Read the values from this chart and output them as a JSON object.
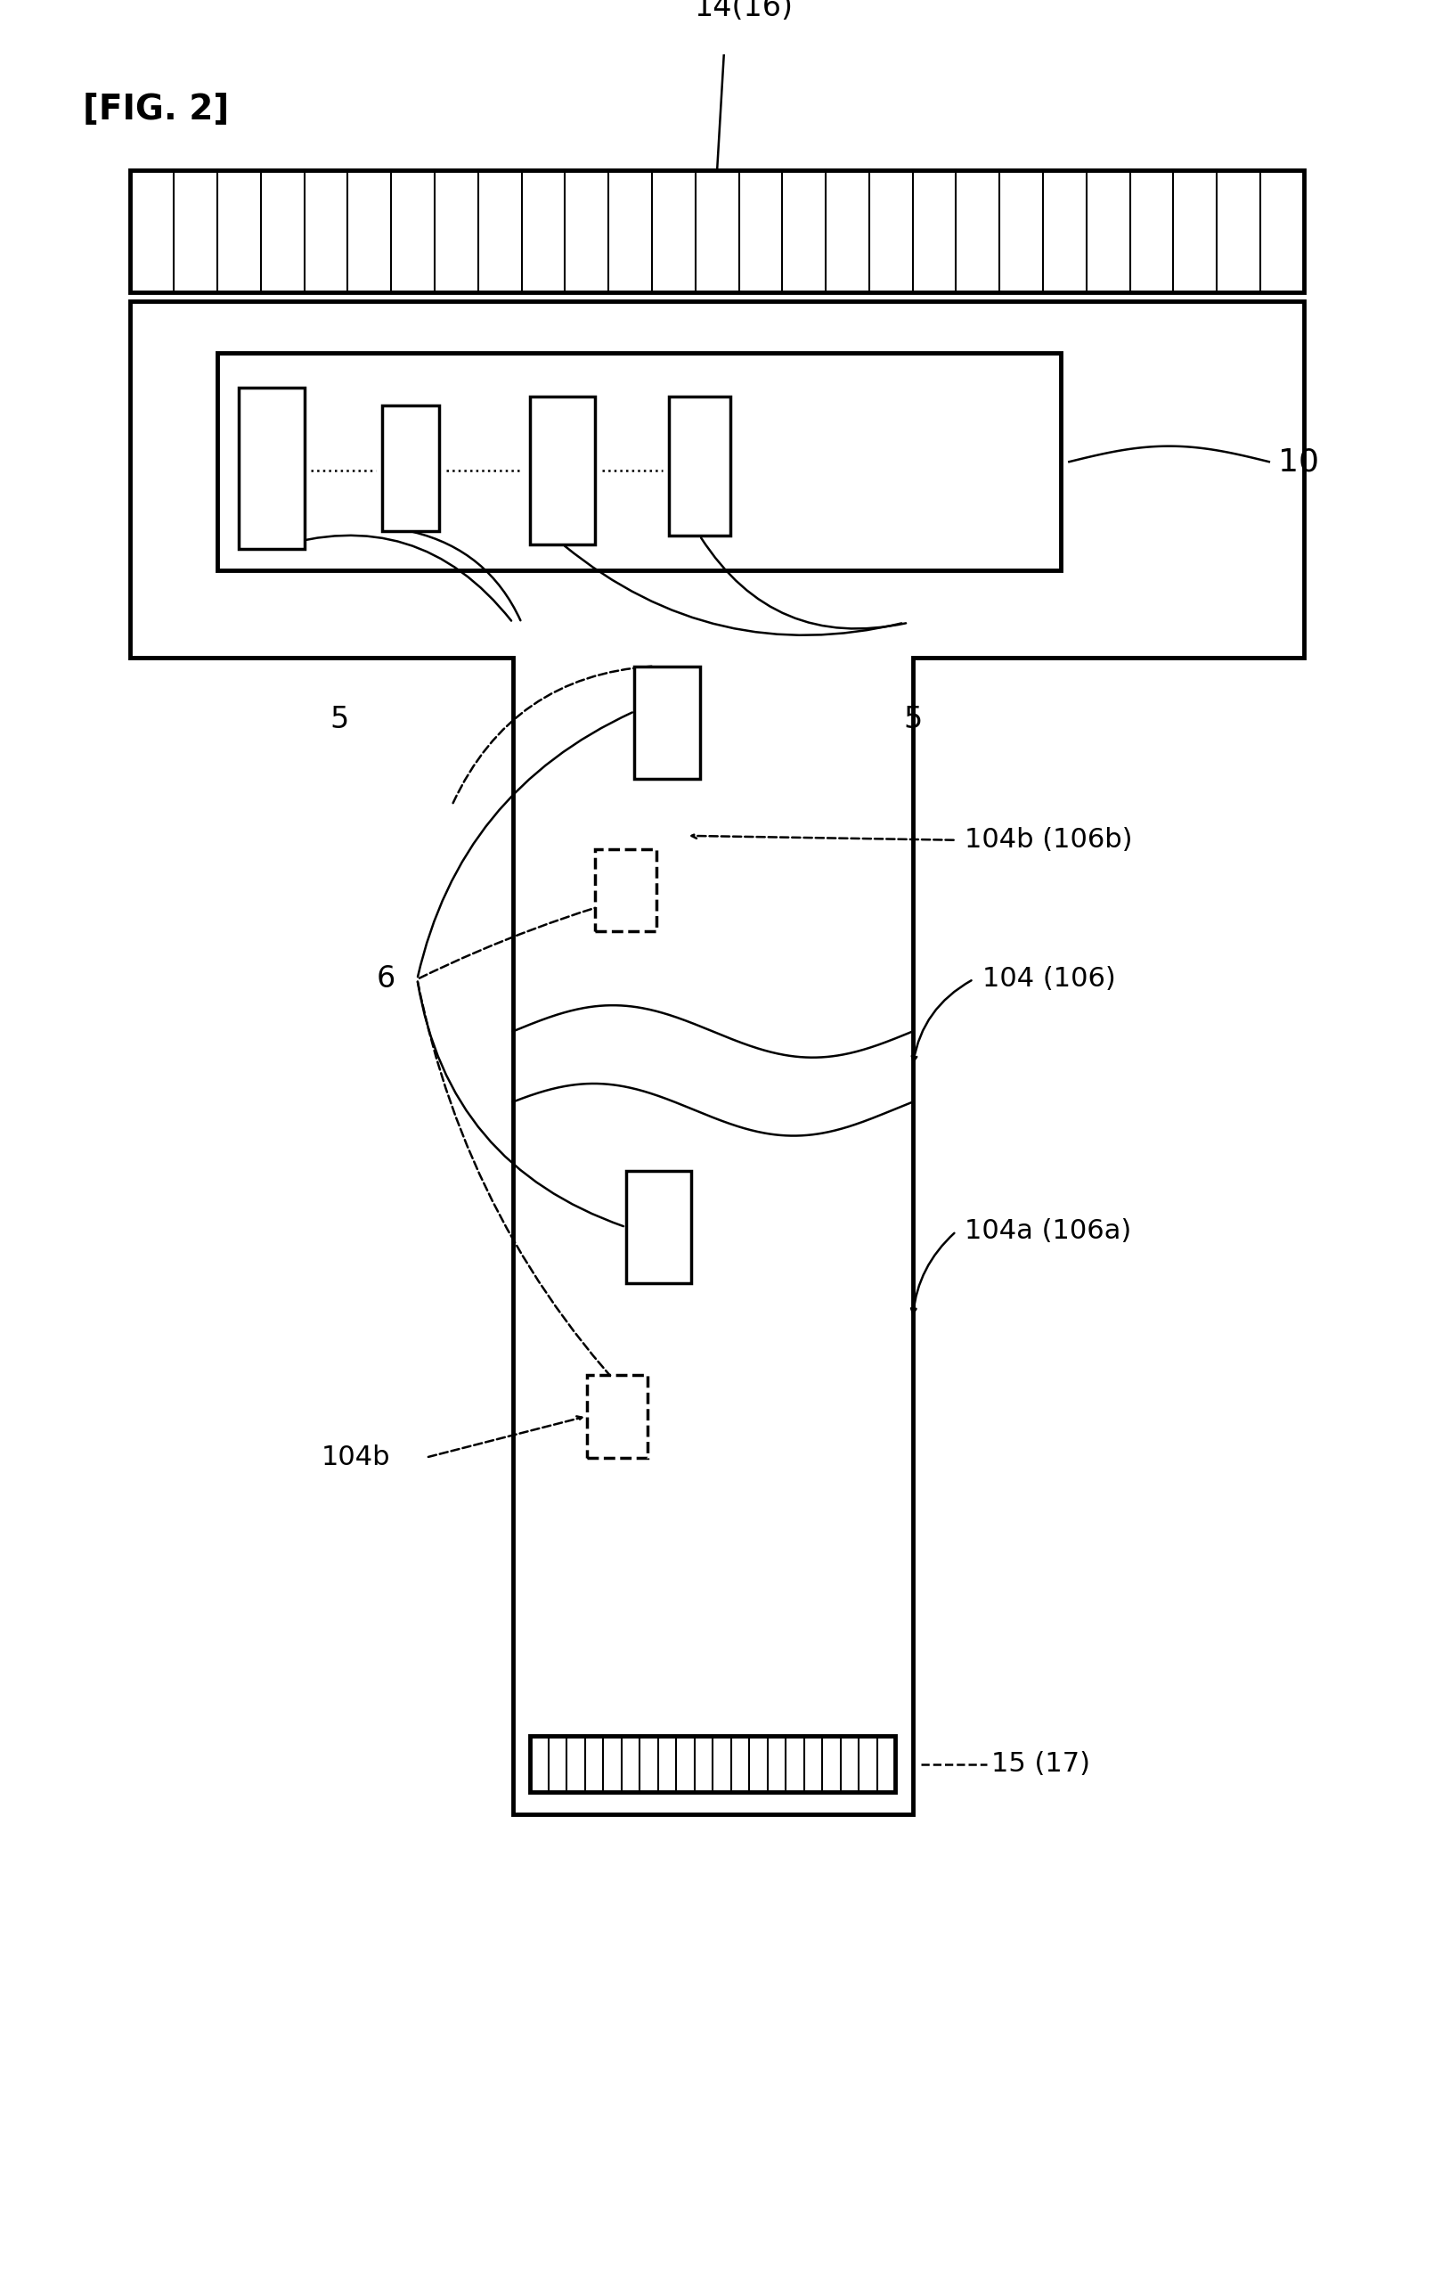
{
  "fig_label": "[FIG. 2]",
  "bg_color": "#ffffff",
  "line_color": "#000000",
  "title_fontsize": 28,
  "label_fontsize": 22,
  "label_14_16": "14(16)",
  "label_10": "10",
  "label_5_left": "5",
  "label_5_right": "5",
  "label_6": "6",
  "label_104b_106b": "104b (106b)",
  "label_104_106": "104 (106)",
  "label_104a_106a": "104a (106a)",
  "label_104b": "104b",
  "label_15_17": "15 (17)"
}
